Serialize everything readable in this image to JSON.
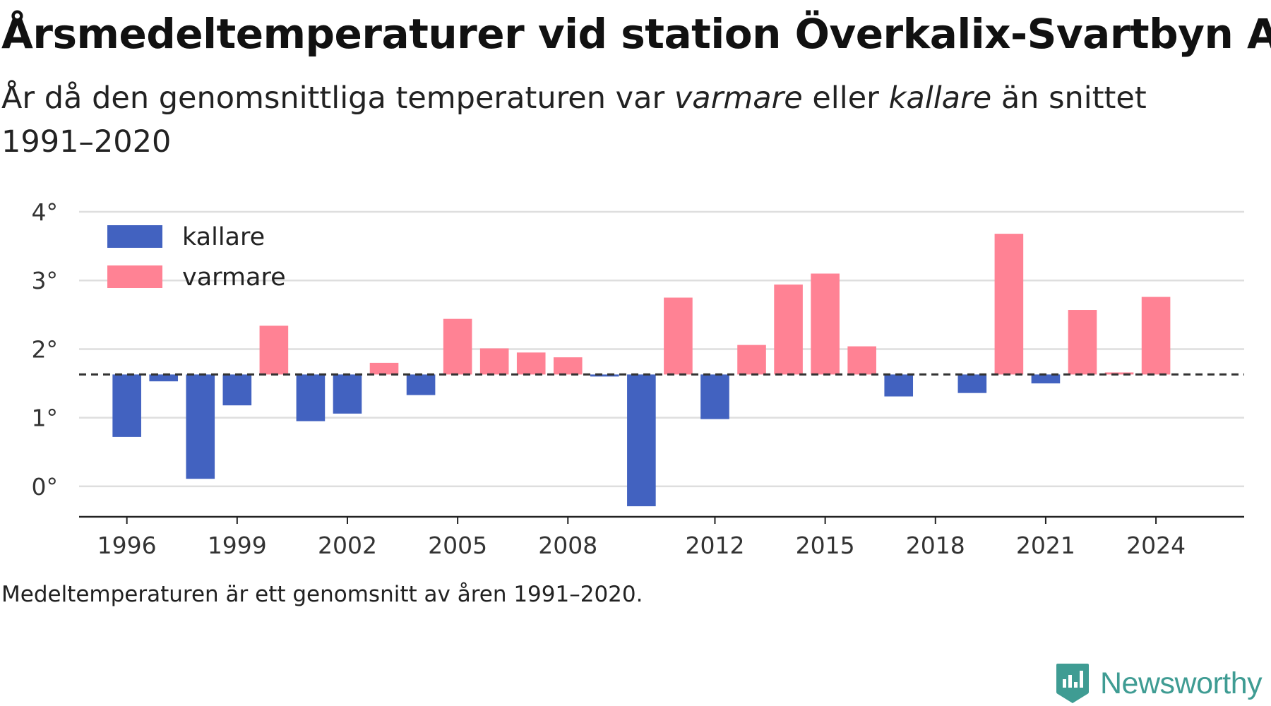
{
  "header": {
    "title": "Årsmedeltemperaturer vid station Överkalix-Svartbyn A",
    "subtitle_part1": "År då den genomsnittliga temperaturen var ",
    "subtitle_em1": "varmare",
    "subtitle_part2": " eller ",
    "subtitle_em2": "kallare",
    "subtitle_part3": " än snittet 1991–2020"
  },
  "footnote": "Medeltemperaturen är ett genomsnitt av åren 1991–2020.",
  "brand": {
    "name": "Newsworthy",
    "icon": "newsworthy-logo-icon",
    "color": "#3f9c93"
  },
  "chart_data": {
    "type": "bar",
    "title": "Årsmedeltemperaturer vid station Överkalix-Svartbyn A",
    "xlabel": "",
    "ylabel": "",
    "baseline": 1.63,
    "baseline_style": "dashed",
    "ylim": [
      -0.32,
      4.0
    ],
    "yticks": [
      0,
      1,
      2,
      3,
      4
    ],
    "ytick_labels": [
      "0°",
      "1°",
      "2°",
      "3°",
      "4°"
    ],
    "xlim": [
      1994.7,
      2026.4
    ],
    "xticks": [
      1996,
      1999,
      2002,
      2005,
      2008,
      2012,
      2015,
      2018,
      2021,
      2024
    ],
    "grid": true,
    "legend_position": "top-left",
    "colors": {
      "kallare": "#4262c0",
      "varmare": "#ff8294"
    },
    "series": [
      {
        "name": "kallare",
        "color": "#4262c0"
      },
      {
        "name": "varmare",
        "color": "#ff8294"
      }
    ],
    "years": [
      1996,
      1997,
      1998,
      1999,
      2000,
      2001,
      2002,
      2003,
      2004,
      2005,
      2006,
      2007,
      2008,
      2009,
      2010,
      2011,
      2012,
      2013,
      2014,
      2015,
      2016,
      2017,
      2018,
      2019,
      2020,
      2021,
      2022,
      2023,
      2024
    ],
    "values": [
      0.72,
      1.53,
      0.11,
      1.18,
      2.34,
      0.95,
      1.06,
      1.8,
      1.33,
      2.44,
      2.01,
      1.95,
      1.88,
      1.6,
      -0.29,
      2.75,
      0.98,
      2.06,
      2.94,
      3.1,
      2.04,
      1.31,
      null,
      1.36,
      3.68,
      1.5,
      2.57,
      1.66,
      2.76
    ]
  }
}
